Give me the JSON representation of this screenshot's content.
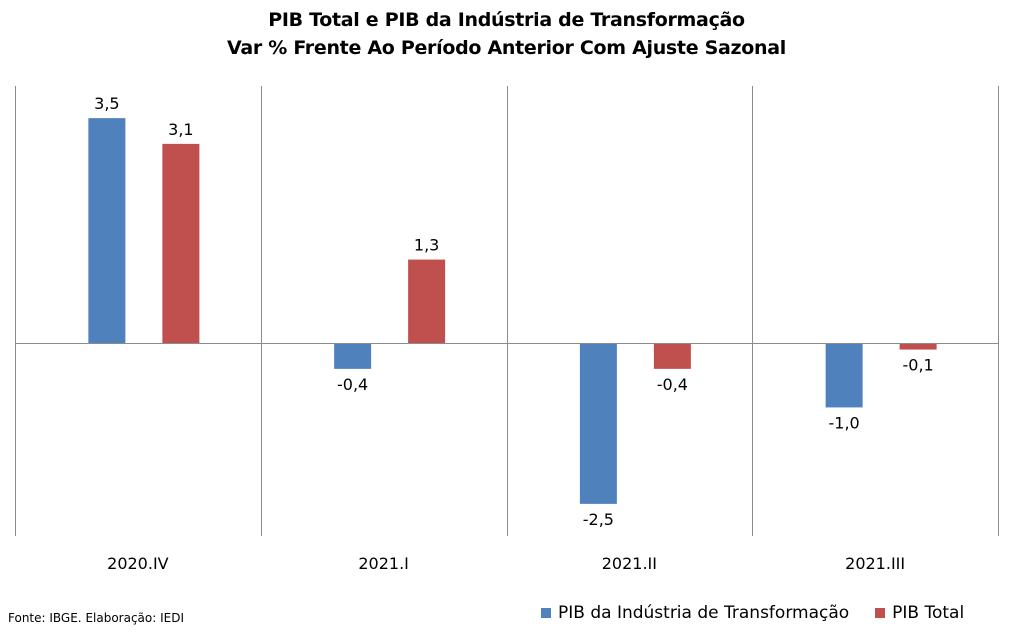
{
  "chart_data": {
    "type": "bar",
    "title_line1": "PIB Total e PIB da Indústria de Transformação",
    "title_line2": "Var % Frente Ao Período Anterior Com Ajuste Sazonal",
    "categories": [
      "2020.IV",
      "2021.I",
      "2021.II",
      "2021.III"
    ],
    "series": [
      {
        "name": "PIB da Indústria de Transformação",
        "color": "#4F81BD",
        "values": [
          3.5,
          -0.4,
          -2.5,
          -1.0
        ],
        "labels": [
          "3,5",
          "-0,4",
          "-2,5",
          "-1,0"
        ]
      },
      {
        "name": "PIB Total",
        "color": "#C0504D",
        "values": [
          3.1,
          1.3,
          -0.4,
          -0.1
        ],
        "labels": [
          "3,1",
          "1,3",
          "-0,4",
          "-0,1"
        ]
      }
    ],
    "ylim": [
      -3.0,
      4.0
    ],
    "grid": "vertical category separators",
    "legend_position": "bottom-right",
    "source": "Fonte: IBGE. Elaboração: IEDI"
  }
}
